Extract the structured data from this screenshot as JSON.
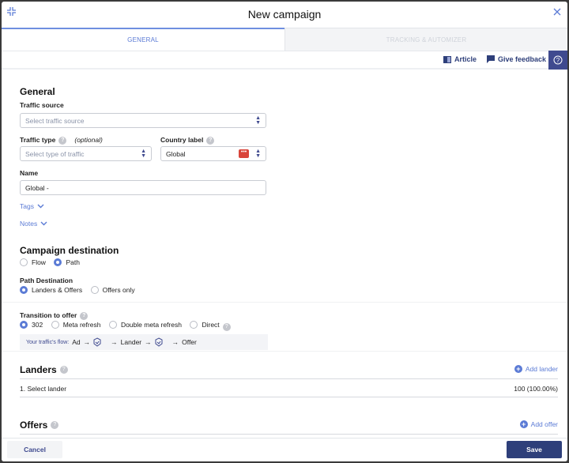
{
  "header": {
    "title": "New campaign"
  },
  "tabs": [
    {
      "label": "GENERAL",
      "active": true
    },
    {
      "label": "TRACKING & AUTOMIZER",
      "active": false
    }
  ],
  "toolbar": {
    "article": "Article",
    "feedback": "Give feedback"
  },
  "general": {
    "heading": "General",
    "traffic_source_label": "Traffic source",
    "traffic_source_placeholder": "Select traffic source",
    "traffic_type_label": "Traffic type",
    "traffic_type_optional": "(optional)",
    "traffic_type_placeholder": "Select type of traffic",
    "country_label": "Country label",
    "country_value": "Global",
    "name_label": "Name",
    "name_value": "Global -",
    "tags": "Tags",
    "notes": "Notes"
  },
  "destination": {
    "heading": "Campaign destination",
    "options": [
      {
        "label": "Flow",
        "selected": false
      },
      {
        "label": "Path",
        "selected": true
      }
    ],
    "path_label": "Path Destination",
    "path_options": [
      {
        "label": "Landers & Offers",
        "selected": true
      },
      {
        "label": "Offers only",
        "selected": false
      }
    ]
  },
  "transition": {
    "label": "Transition to offer",
    "options": [
      {
        "label": "302",
        "selected": true
      },
      {
        "label": "Meta refresh",
        "selected": false
      },
      {
        "label": "Double meta refresh",
        "selected": false
      },
      {
        "label": "Direct",
        "selected": false
      }
    ],
    "flow_label": "Your traffic's flow:",
    "flow_steps": [
      "Ad",
      "Lander",
      "Offer"
    ]
  },
  "landers": {
    "heading": "Landers",
    "add": "Add lander",
    "rows": [
      {
        "name": "1. Select lander",
        "weight": "100 (100.00%)"
      }
    ]
  },
  "offers": {
    "heading": "Offers",
    "add": "Add offer"
  },
  "footer": {
    "cancel": "Cancel",
    "save": "Save"
  },
  "colors": {
    "accent": "#5b7bd5",
    "primary": "#3f4a8f",
    "flag": "#d9453b"
  }
}
